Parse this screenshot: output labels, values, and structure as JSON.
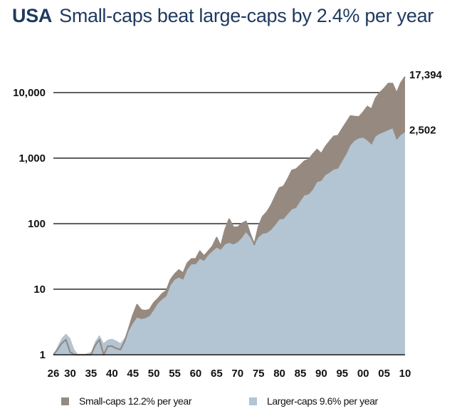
{
  "title": {
    "country": "USA",
    "subtitle": "Small-caps beat large-caps by 2.4% per year"
  },
  "colors": {
    "small_caps": "#968a80",
    "large_caps": "#b3c4d3",
    "title": "#1e3a5f",
    "gridline": "#000000"
  },
  "legend": [
    {
      "label": "Small-caps 12.2% per year",
      "color": "#968a80"
    },
    {
      "label": "Larger-caps 9.6% per year",
      "color": "#b3c4d3"
    }
  ],
  "chart_data": {
    "type": "area",
    "title": "USA Small-caps beat large-caps by 2.4% per year",
    "xlabel": "",
    "ylabel": "",
    "yscale": "log",
    "ylim": [
      1,
      20000
    ],
    "xlim": [
      1926,
      2010
    ],
    "grid": true,
    "legend_position": "bottom",
    "yticks": [
      1,
      10,
      100,
      1000,
      10000
    ],
    "ytick_labels": [
      "1",
      "10",
      "100",
      "1,000",
      "10,000"
    ],
    "xticks": [
      1926,
      1930,
      1935,
      1940,
      1945,
      1950,
      1955,
      1960,
      1965,
      1970,
      1975,
      1980,
      1985,
      1990,
      1995,
      2000,
      2005,
      2010
    ],
    "xtick_labels": [
      "26",
      "30",
      "35",
      "40",
      "45",
      "50",
      "55",
      "60",
      "65",
      "70",
      "75",
      "80",
      "85",
      "90",
      "95",
      "00",
      "05",
      "10"
    ],
    "x": [
      1926,
      1927,
      1928,
      1929,
      1930,
      1931,
      1932,
      1933,
      1934,
      1935,
      1936,
      1937,
      1938,
      1939,
      1940,
      1941,
      1942,
      1943,
      1944,
      1945,
      1946,
      1947,
      1948,
      1949,
      1950,
      1951,
      1952,
      1953,
      1954,
      1955,
      1956,
      1957,
      1958,
      1959,
      1960,
      1961,
      1962,
      1963,
      1964,
      1965,
      1966,
      1967,
      1968,
      1969,
      1970,
      1971,
      1972,
      1973,
      1974,
      1975,
      1976,
      1977,
      1978,
      1979,
      1980,
      1981,
      1982,
      1983,
      1984,
      1985,
      1986,
      1987,
      1988,
      1989,
      1990,
      1991,
      1992,
      1993,
      1994,
      1995,
      1996,
      1997,
      1998,
      1999,
      2000,
      2001,
      2002,
      2003,
      2004,
      2005,
      2006,
      2007,
      2008,
      2009,
      2010
    ],
    "series": [
      {
        "name": "Small-caps 12.2% per year",
        "color": "#968a80",
        "end_label": "17,394",
        "values": [
          1.0,
          1.2,
          1.5,
          1.7,
          1.1,
          0.6,
          0.6,
          0.8,
          0.9,
          1.0,
          1.4,
          1.7,
          1.0,
          1.35,
          1.35,
          1.25,
          1.2,
          1.6,
          2.5,
          4.0,
          5.8,
          4.8,
          4.7,
          4.9,
          6.2,
          7.2,
          8.5,
          9.5,
          14,
          17,
          19.6,
          17.5,
          25,
          29,
          29,
          38,
          32,
          38,
          45,
          61,
          45,
          80,
          117,
          88,
          88,
          100,
          108,
          70,
          48,
          90,
          128,
          150,
          190,
          260,
          350,
          370,
          480,
          650,
          680,
          780,
          900,
          950,
          1150,
          1350,
          1170,
          1500,
          1800,
          2150,
          2200,
          2800,
          3500,
          4400,
          4300,
          4250,
          5000,
          6100,
          5600,
          8200,
          10000,
          11500,
          13700,
          13700,
          9800,
          14000,
          17394
        ]
      },
      {
        "name": "Larger-caps 9.6% per year",
        "color": "#b3c4d3",
        "end_label": "2,502",
        "values": [
          1.0,
          1.35,
          1.8,
          2.1,
          1.8,
          1.2,
          0.9,
          0.85,
          1.05,
          1.1,
          1.6,
          2.0,
          1.5,
          1.7,
          1.75,
          1.65,
          1.5,
          1.8,
          2.3,
          3.0,
          3.7,
          3.5,
          3.6,
          3.9,
          4.8,
          6.1,
          7.0,
          7.8,
          11.5,
          14,
          15,
          14,
          20,
          24,
          24,
          29,
          27,
          33,
          38,
          43,
          40,
          48,
          51,
          48,
          52,
          60,
          74,
          62,
          48,
          62,
          70,
          72,
          80,
          95,
          116,
          118,
          140,
          165,
          175,
          220,
          270,
          280,
          330,
          430,
          450,
          550,
          600,
          670,
          690,
          900,
          1150,
          1570,
          1850,
          2000,
          2050,
          1860,
          1600,
          2150,
          2350,
          2500,
          2670,
          2850,
          1900,
          2250,
          2502
        ]
      }
    ]
  }
}
